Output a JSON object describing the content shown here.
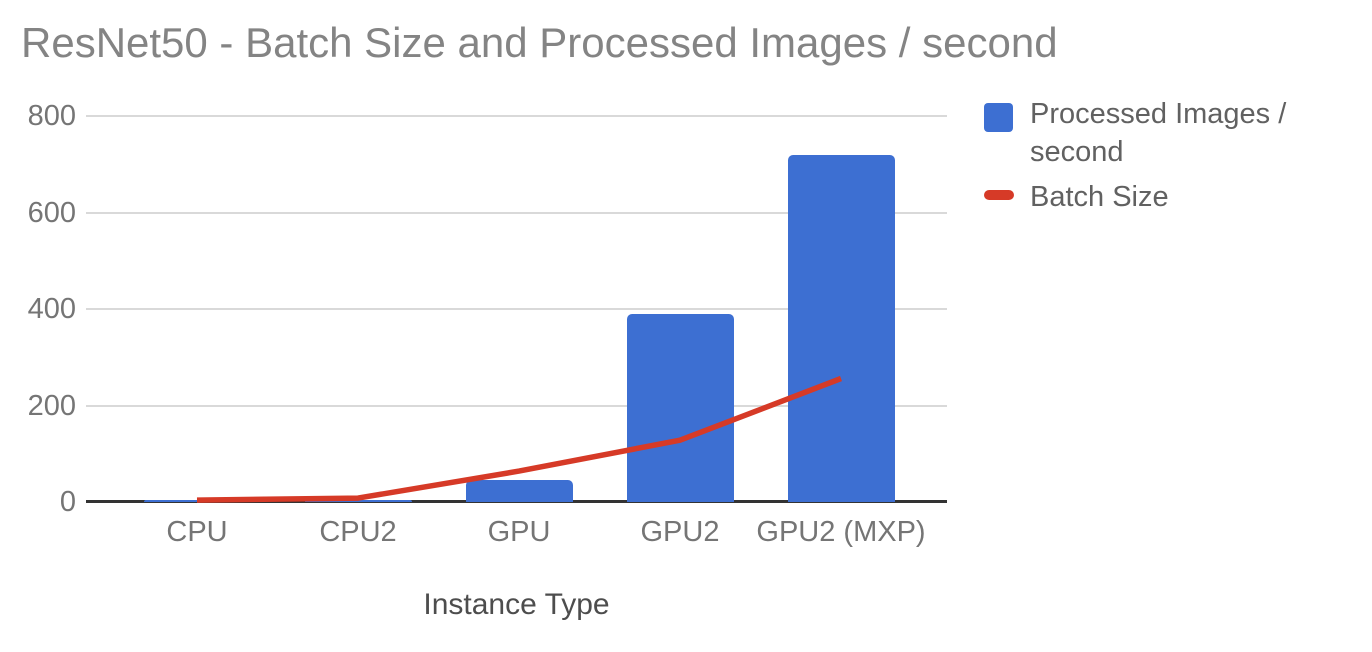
{
  "title": "ResNet50 - Batch Size and Processed Images / second",
  "x_axis_title": "Instance Type",
  "colors": {
    "bar_blue": "#3d6fd2",
    "line_red": "#d63a27",
    "gridline": "#d9d9d9",
    "axis_line": "#333333",
    "title_text": "#848484",
    "tick_text": "#757575",
    "axis_title_text": "#4d4d4d",
    "legend_text": "#616161"
  },
  "legend": {
    "position": "right",
    "items": [
      {
        "label": "Processed Images / second",
        "color": "#3d6fd2",
        "swatch": "square"
      },
      {
        "label": "Batch Size",
        "color": "#d63a27",
        "swatch": "dash"
      }
    ]
  },
  "chart_data": {
    "type": "combo-bar-line",
    "title": "ResNet50 - Batch Size and Processed Images / second",
    "xlabel": "Instance Type",
    "ylabel": "",
    "categories": [
      "CPU",
      "CPU2",
      "GPU",
      "GPU2",
      "GPU2 (MXP)"
    ],
    "series": [
      {
        "name": "Processed Images / second",
        "type": "bar",
        "color": "#3d6fd2",
        "values": [
          4,
          4,
          46,
          390,
          720
        ]
      },
      {
        "name": "Batch Size",
        "type": "line",
        "color": "#d63a27",
        "values": [
          4,
          8,
          64,
          128,
          256
        ]
      }
    ],
    "ylim": [
      0,
      800
    ],
    "yticks": [
      0,
      200,
      400,
      600,
      800
    ],
    "grid": true,
    "legend_position": "right"
  }
}
